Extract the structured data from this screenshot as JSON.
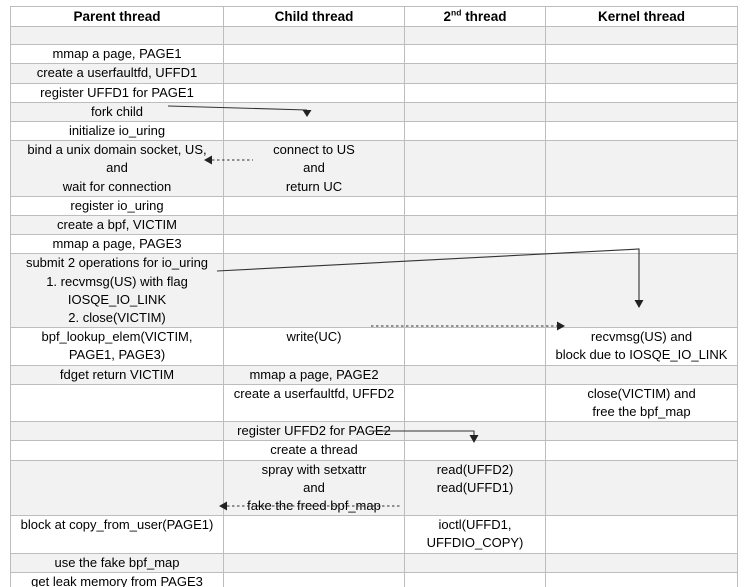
{
  "table": {
    "headers": [
      "Parent thread",
      "Child thread",
      {
        "base": "2",
        "sup": "nd",
        "rest": " thread"
      },
      "Kernel thread"
    ],
    "rows": [
      {
        "cells": [
          "",
          "",
          "",
          ""
        ]
      },
      {
        "cells": [
          "mmap a page, PAGE1",
          "",
          "",
          ""
        ]
      },
      {
        "cells": [
          "create a userfaultfd, UFFD1",
          "",
          "",
          ""
        ]
      },
      {
        "cells": [
          "register UFFD1 for PAGE1",
          "",
          "",
          ""
        ]
      },
      {
        "cells": [
          "fork child",
          "",
          "",
          ""
        ]
      },
      {
        "cells": [
          "initialize io_uring",
          "",
          "",
          ""
        ]
      },
      {
        "cells": [
          "bind a unix domain socket, US,\nand\nwait for connection",
          "connect to US\nand\nreturn UC",
          "",
          ""
        ]
      },
      {
        "cells": [
          "register io_uring",
          "",
          "",
          ""
        ]
      },
      {
        "cells": [
          "create a bpf, VICTIM",
          "",
          "",
          ""
        ]
      },
      {
        "cells": [
          "mmap a page, PAGE3",
          "",
          "",
          ""
        ]
      },
      {
        "cells": [
          "submit 2 operations for io_uring\n1. recvmsg(US) with flag\nIOSQE_IO_LINK\n2. close(VICTIM)",
          "",
          "",
          ""
        ]
      },
      {
        "cells": [
          "bpf_lookup_elem(VICTIM,\nPAGE1, PAGE3)",
          "write(UC)",
          "",
          "recvmsg(US) and\nblock due to IOSQE_IO_LINK"
        ]
      },
      {
        "cells": [
          "fdget return VICTIM",
          "mmap a page, PAGE2",
          "",
          ""
        ]
      },
      {
        "cells": [
          "",
          "create a userfaultfd, UFFD2",
          "",
          "close(VICTIM) and\nfree the bpf_map"
        ]
      },
      {
        "cells": [
          "",
          "register UFFD2 for PAGE2",
          "",
          ""
        ]
      },
      {
        "cells": [
          "",
          "create a thread",
          "",
          ""
        ]
      },
      {
        "cells": [
          "",
          "spray with setxattr\nand\nfake the freed bpf_map",
          "read(UFFD2)\nread(UFFD1)",
          ""
        ]
      },
      {
        "cells": [
          "block at copy_from_user(PAGE1)",
          "",
          "ioctl(UFFD1,\nUFFDIO_COPY)",
          ""
        ]
      },
      {
        "cells": [
          "use the fake bpf_map",
          "",
          "",
          ""
        ]
      },
      {
        "cells": [
          "get leak memory from PAGE3",
          "",
          "",
          ""
        ]
      }
    ]
  },
  "arrows": [
    {
      "name": "fork-child-arrow",
      "style": "solid",
      "from": "fork child (parent thread)",
      "to": "child thread column"
    },
    {
      "name": "connect-to-us-arrow",
      "style": "dashed",
      "from": "connect to US / return UC (child thread)",
      "to": "bind a unix domain socket (parent thread)"
    },
    {
      "name": "submit-io-uring-arrow",
      "style": "solid",
      "from": "submit 2 operations for io_uring (parent thread)",
      "to": "recvmsg(US) (kernel thread)"
    },
    {
      "name": "write-uc-arrow",
      "style": "dashed",
      "from": "write(UC) (child thread)",
      "to": "recvmsg(US) and block (kernel thread)"
    },
    {
      "name": "create-thread-arrow",
      "style": "solid",
      "from": "create a thread (child thread)",
      "to": "read(UFFD2) (2nd thread)"
    },
    {
      "name": "ioctl-uffdio-copy-arrow",
      "style": "dashed",
      "from": "ioctl(UFFD1, UFFDIO_COPY) (2nd thread)",
      "to": "block at copy_from_user(PAGE1) (parent thread)"
    }
  ],
  "colors": {
    "row_shade": "#f2f2f2",
    "row_plain": "#ffffff",
    "border": "#bdbdbd",
    "text": "#000000",
    "arrow": "#333333",
    "background": "#ffffff"
  }
}
